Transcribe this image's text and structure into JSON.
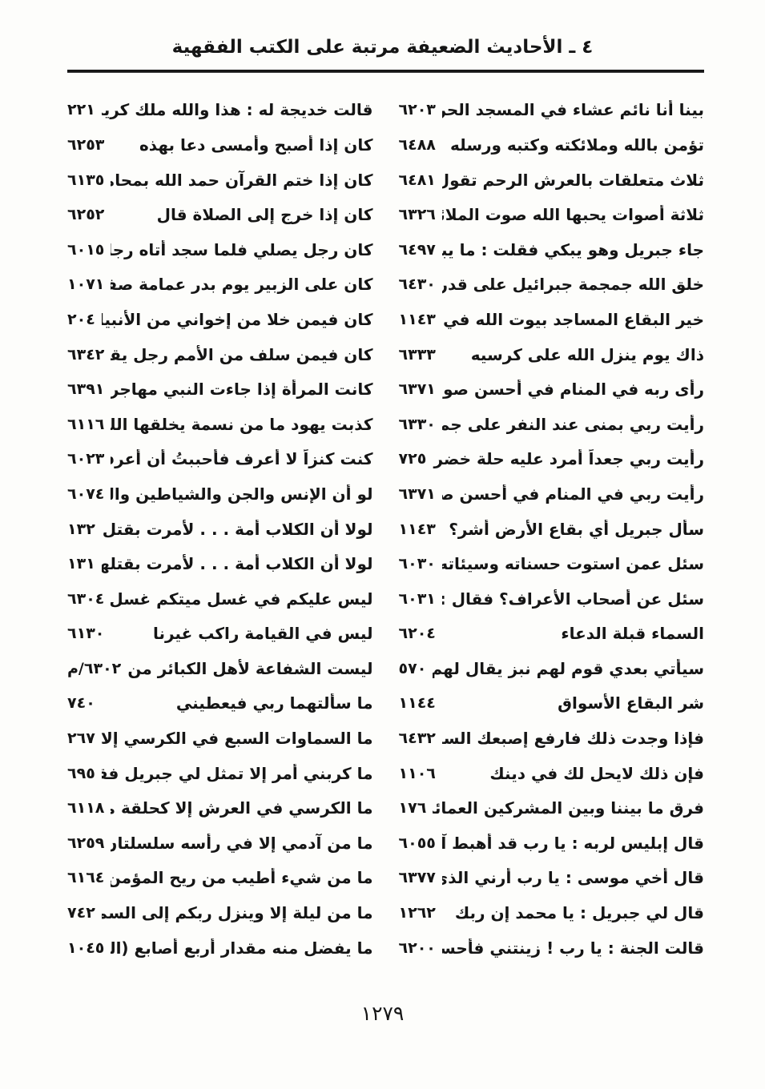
{
  "page": {
    "ink_color": "#151515",
    "paper_color": "#fdfdfb"
  },
  "header": {
    "title": "٤ ـ الأحاديث الضعيفة مرتبة على الكتب الفقهية"
  },
  "columns": {
    "right": {
      "entries": [
        {
          "text": "بينا أنا نائم عشاء في المسجد الحرام",
          "num": "٦٢٠٣"
        },
        {
          "text": "تؤمن بالله وملائكته وكتبه ورسله",
          "num": "٦٤٨٨"
        },
        {
          "text": "ثلاث متعلقات بالعرش الرحم تقول",
          "num": "٦٤٨١"
        },
        {
          "text": "ثلاثة أصوات يحبها الله صوت الملائكة",
          "num": "٦٣٢٦"
        },
        {
          "text": "جاء جبريل وهو يبكي فقلت : ما يبكيك",
          "num": "٦٤٩٧"
        },
        {
          "text": "خلق الله جمجمة جبرائيل على قدر",
          "num": "٦٤٣٠"
        },
        {
          "text": "خير البقاع المساجد بيوت الله في",
          "num": "١١٤٣"
        },
        {
          "text": "ذاك يوم ينزل الله على كرسيه",
          "num": "٦٣٣٣"
        },
        {
          "text": "رأى ربه في المنام في أحسن صورة شاباً",
          "num": "٦٣٧١"
        },
        {
          "text": "رأيت ربي بمنى عند النفر على جمل",
          "num": "٦٣٣٠"
        },
        {
          "text": "رأيت ربي جعداً أمرد عليه حلة خضراء",
          "num": "٧٢٥"
        },
        {
          "text": "رأيت ربي في المنام في أحسن صورة",
          "num": "٦٣٧١"
        },
        {
          "text": "سأل جبريل أي بقاع الأرض أشر؟",
          "num": "١١٤٣"
        },
        {
          "text": "سئل عمن استوت حسناته وسيئاته",
          "num": "٦٠٣٠"
        },
        {
          "text": "سئل عن أصحاب الأعراف؟ فقال : هم",
          "num": "٦٠٣١"
        },
        {
          "text": "السماء قبلة الدعاء",
          "num": "٦٢٠٤"
        },
        {
          "text": "سيأتي بعدي قوم لهم نبز يقال لهم",
          "num": "٥٧٠"
        },
        {
          "text": "شر البقاع الأسواق",
          "num": "١١٤٤"
        },
        {
          "text": "فإذا وجدت ذلك فارفع إصبعك السبابة",
          "num": "٦٤٣٢"
        },
        {
          "text": "فإن ذلك لايحل لك في دينك",
          "num": "١١٠٦"
        },
        {
          "text": "فرق ما بيننا وبين المشركين العمائم على",
          "num": "١٧٦"
        },
        {
          "text": "قال إبليس لربه : يا رب قد أهبط آدم وقد",
          "num": "٦٠٥٥"
        },
        {
          "text": "قال أخي موسى : يا رب أرني الذي كنت",
          "num": "٦٣٧٧"
        },
        {
          "text": "قال لي جبريل : يا محمد إن ربك",
          "num": "١٢٦٢"
        },
        {
          "text": "قالت الجنة : يا رب ! زينتني فأحسنت أركاني",
          "num": "٦٢٠٠"
        }
      ]
    },
    "left": {
      "entries": [
        {
          "text": "قالت خديجة له : هذا والله ملك كريم",
          "num": "٢٢١"
        },
        {
          "text": "كان إذا أصبح وأمسى دعا بهذه",
          "num": "٦٢٥٣"
        },
        {
          "text": "كان إذا ختم القرآن حمد الله بمحامد",
          "num": "٦١٣٥"
        },
        {
          "text": "كان إذا خرج إلى الصلاة قال",
          "num": "٦٢٥٢"
        },
        {
          "text": "كان رجل يصلي فلما سجد أتاه رجل",
          "num": "٦٠١٥"
        },
        {
          "text": "كان على الزبير يوم بدر عمامة صفراء",
          "num": "١٠٧١"
        },
        {
          "text": "كان فيمن خلا من إخواني من الأنبياء",
          "num": "٢٠٤"
        },
        {
          "text": "كان فيمن سلف من الأمم رجل يقال له",
          "num": "٦٣٤٢"
        },
        {
          "text": "كانت المرأة إذا جاءت النبي مهاجرة",
          "num": "٦٣٩١"
        },
        {
          "text": "كذبت يهود ما من نسمة يخلقها الله في",
          "num": "٦١١٦"
        },
        {
          "text": "كنت كنزاً لا أعرف فأحببتُ أن أعرف",
          "num": "٦٠٢٣"
        },
        {
          "text": "لو أن الإنس والجن والشياطين والملائكة",
          "num": "٦٠٧٤"
        },
        {
          "text": "لولا أن الكلاب أمة . . . لأمرت بقتل",
          "num": "١٣٢"
        },
        {
          "text": "لولا أن الكلاب أمة . . . لأمرت بقتلها",
          "num": "١٣١"
        },
        {
          "text": "ليس عليكم في غسل ميتكم غسل",
          "num": "٦٣٠٤"
        },
        {
          "text": "ليس في القيامة راكب غيرنا",
          "num": "٦١٣٠"
        },
        {
          "text": "ليست الشفاعة لأهل الكبائر من أمتي",
          "num": "٦٣٠٢/م"
        },
        {
          "text": "ما سألتهما ربي فيعطيني",
          "num": "٧٤٠"
        },
        {
          "text": "ما السماوات السبع في الكرسي إلا",
          "num": "٢٦٧"
        },
        {
          "text": "ما كربني أمر إلا تمثل لي جبريل فقال",
          "num": "٦٩٥"
        },
        {
          "text": "ما الكرسي في العرش إلا كحلقة من",
          "num": "٦١١٨"
        },
        {
          "text": "ما من آدمي إلا في رأسه سلسلتان",
          "num": "٦٢٥٩"
        },
        {
          "text": "ما من شيء أطيب من ريح المؤمن إن",
          "num": "٦١٦٤"
        },
        {
          "text": "ما من ليلة إلا وينزل ربكم إلى السماء",
          "num": "٧٤٢"
        },
        {
          "text": "ما يفضل منه مقدار أربع أصابع (الكرسي)",
          "num": "١٠٤٥"
        }
      ]
    }
  },
  "footer": {
    "page_number": "١٢٧٩"
  }
}
